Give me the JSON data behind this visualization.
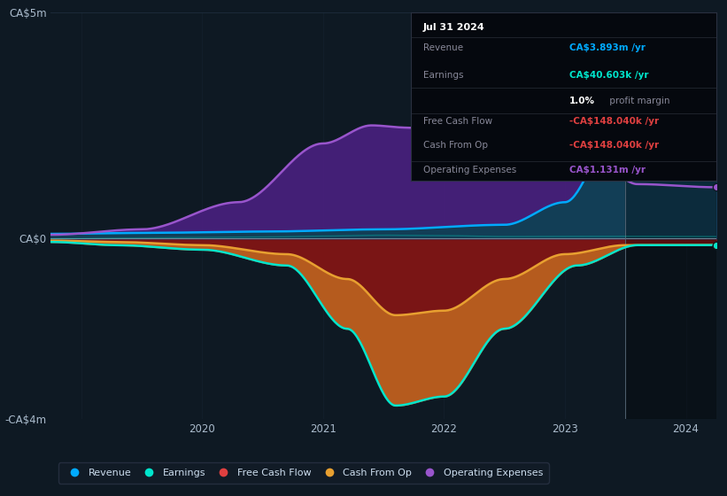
{
  "bg_color": "#0e1923",
  "plot_bg_color": "#0e1923",
  "ylim": [
    -4000000,
    5000000
  ],
  "yticks": [
    -4000000,
    0,
    5000000
  ],
  "ytick_labels": [
    "-CA$4m",
    "CA$0",
    "CA$5m"
  ],
  "grid_color": "#1e2d3d",
  "colors": {
    "revenue": "#00aaff",
    "earnings": "#00e5cc",
    "free_cash_flow": "#e04040",
    "cash_from_op": "#e8a030",
    "operating_expenses": "#9955cc"
  },
  "legend_items": [
    "Revenue",
    "Earnings",
    "Free Cash Flow",
    "Cash From Op",
    "Operating Expenses"
  ],
  "tooltip": {
    "date": "Jul 31 2024",
    "revenue_label": "Revenue",
    "revenue_value": "CA$3.893m",
    "revenue_unit": "/yr",
    "earnings_label": "Earnings",
    "earnings_value": "CA$40.603k",
    "earnings_unit": "/yr",
    "margin_text": "1.0%",
    "margin_label": " profit margin",
    "fcf_label": "Free Cash Flow",
    "fcf_value": "-CA$148.040k",
    "fcf_unit": "/yr",
    "cfop_label": "Cash From Op",
    "cfop_value": "-CA$148.040k",
    "cfop_unit": "/yr",
    "opex_label": "Operating Expenses",
    "opex_value": "CA$1.131m",
    "opex_unit": "/yr"
  },
  "vline_x": 2024.0
}
